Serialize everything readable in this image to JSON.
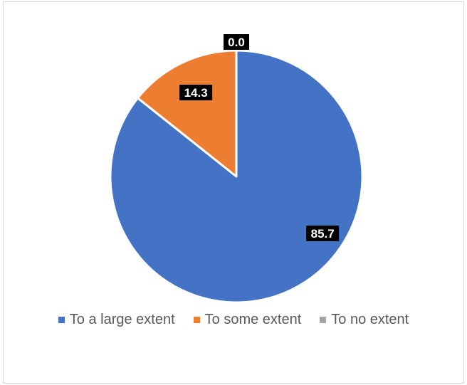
{
  "chart_data": {
    "type": "pie",
    "categories": [
      "To a large extent",
      "To some extent",
      "To no extent"
    ],
    "values": [
      85.7,
      14.3,
      0.0
    ],
    "data_labels": [
      "85.7",
      "14.3",
      "0.0"
    ],
    "colors": [
      "#4472c4",
      "#ed7d31",
      "#a5a5a5"
    ],
    "start_angle": "12 o'clock",
    "direction": "clockwise",
    "legend": "bottom"
  }
}
